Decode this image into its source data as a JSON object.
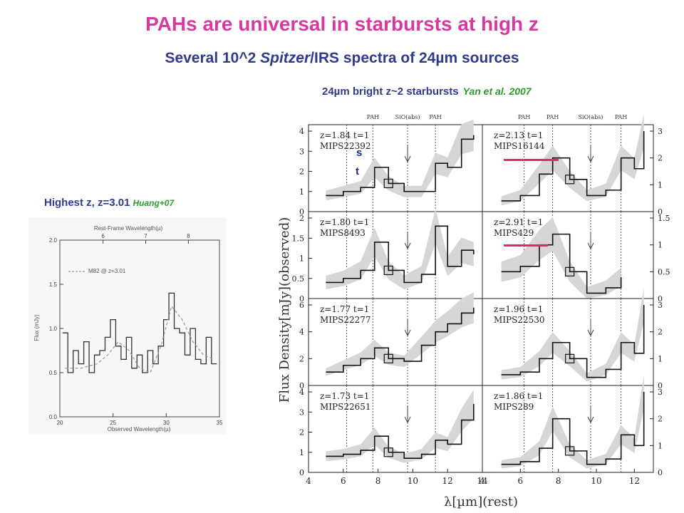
{
  "slide": {
    "title": "PAHs are universal in starbursts at high z",
    "subtitle_pre": "Several 10^2 ",
    "subtitle_italic": "Spitzer",
    "subtitle_post": "/IRS spectra of 24µm sources",
    "right_caption": "24µm bright z~2 starbursts",
    "right_ref": "Yan et al. 2007",
    "left_caption": "Highest z, z=3.01",
    "left_ref": "Huang+07"
  },
  "colors": {
    "title": "#d63aa0",
    "subtitle": "#2e3b8f",
    "ref": "#2e9b2e",
    "highlight": "#e0286e",
    "overlay_text": "#1c2a8c"
  },
  "chart_data": [
    {
      "type": "line",
      "title": "",
      "top_axis_label": "Rest-Frame Wavelength(µ)",
      "top_ticks": [
        "6",
        "7",
        "8"
      ],
      "xlabel": "Observed Wavelength(µ)",
      "ylabel": "Flux (mJy)",
      "xlim": [
        20,
        35
      ],
      "ylim": [
        0,
        2.0
      ],
      "x_ticks": [
        "20",
        "25",
        "30",
        "35"
      ],
      "y_ticks": [
        "0.0",
        "0.5",
        "1.0",
        "1.5",
        "2.0"
      ],
      "legend": "M82 @ z=3.01",
      "series": [
        {
          "name": "data",
          "x": [
            20.5,
            21,
            21.5,
            22,
            22.5,
            23,
            23.5,
            24,
            24.5,
            25,
            25.5,
            26,
            26.5,
            27,
            27.5,
            28,
            28.5,
            29,
            29.5,
            30,
            30.5,
            31,
            31.5,
            32,
            32.5,
            33,
            33.5,
            34,
            34.5
          ],
          "y": [
            0.95,
            0.5,
            0.75,
            0.6,
            0.85,
            0.5,
            0.7,
            0.75,
            0.9,
            1.1,
            0.8,
            0.65,
            0.9,
            0.55,
            0.7,
            0.5,
            0.75,
            0.6,
            0.8,
            1.1,
            1.4,
            1.0,
            0.95,
            0.7,
            1.0,
            0.65,
            0.6,
            0.9,
            0.6
          ]
        },
        {
          "name": "M82 @ z=3.01",
          "x": [
            20.5,
            22,
            23.5,
            24.5,
            25.5,
            26.5,
            27.5,
            28.5,
            29.5,
            30.5,
            31.5,
            32.5,
            33.5,
            34.5
          ],
          "y": [
            0.55,
            0.55,
            0.6,
            0.7,
            0.85,
            0.75,
            0.55,
            0.5,
            0.8,
            1.25,
            1.1,
            0.85,
            0.7,
            0.65
          ]
        }
      ]
    },
    {
      "type": "line",
      "title": "",
      "xlabel": "λ[µm](rest)",
      "ylabel": "Flux Density[mJy](observed)",
      "x_ticks_left": [
        "4",
        "6",
        "8",
        "10",
        "12",
        "14"
      ],
      "x_ticks_right": [
        "4",
        "6",
        "8",
        "10",
        "12"
      ],
      "features": [
        "PAH",
        "SiO(abs)",
        "PAH",
        "PAH",
        "PAH",
        "SiO(abs)",
        "PAH"
      ],
      "panels": [
        {
          "label": "z=1.84  t=1",
          "name": "MIPS22392",
          "y_ticks": [
            "0",
            "1",
            "2",
            "3",
            "4"
          ],
          "x": [
            5,
            6,
            7,
            7.8,
            8.6,
            9.5,
            10.5,
            11.3,
            12,
            12.8,
            13.5
          ],
          "y": [
            0.8,
            1.0,
            1.2,
            2.2,
            1.4,
            1.0,
            1.0,
            2.4,
            2.2,
            3.6,
            3.8
          ]
        },
        {
          "label": "z=2.13  t=1",
          "name": "MIPS16144",
          "y_ticks": [
            "0",
            "1",
            "2",
            "3"
          ],
          "x": [
            5,
            6,
            7,
            7.7,
            8.6,
            9.5,
            10.5,
            11.3,
            12,
            12.5
          ],
          "y": [
            0.4,
            0.6,
            1.4,
            2.0,
            1.2,
            0.6,
            0.8,
            2.0,
            1.6,
            3.0
          ]
        },
        {
          "label": "z=1.80  t=1",
          "name": "MIPS8493",
          "y_ticks": [
            "0",
            "0.5",
            "1",
            "1.5",
            "2"
          ],
          "x": [
            5,
            6,
            7,
            7.8,
            8.6,
            9.5,
            10.5,
            11.3,
            12,
            12.8,
            13.5
          ],
          "y": [
            0.4,
            0.5,
            0.7,
            1.4,
            0.7,
            0.4,
            0.6,
            1.8,
            0.8,
            1.2,
            1.1
          ]
        },
        {
          "label": "z=2.91  t=1",
          "name": "MIPS429",
          "y_ticks": [
            "0",
            "0.5",
            "1",
            "1.5"
          ],
          "x": [
            5,
            6,
            7,
            7.7,
            8.6,
            9.5,
            10.5,
            11.3
          ],
          "y": [
            0.5,
            0.6,
            1.0,
            1.2,
            0.5,
            0.1,
            0.2,
            0.4
          ]
        },
        {
          "label": "z=1.77  t=1",
          "name": "MIPS22277",
          "y_ticks": [
            "0",
            "2",
            "4",
            "6"
          ],
          "x": [
            5,
            6,
            7,
            7.8,
            8.6,
            9.5,
            10.5,
            11.3,
            12,
            12.8,
            13.5
          ],
          "y": [
            1.0,
            1.5,
            2.0,
            2.8,
            2.0,
            1.8,
            3.0,
            4.0,
            4.6,
            5.4,
            5.8
          ]
        },
        {
          "label": "z=1.96  t=1",
          "name": "MIPS22530",
          "y_ticks": [
            "0",
            "1",
            "2",
            "3"
          ],
          "x": [
            5,
            6,
            7,
            7.7,
            8.6,
            9.5,
            10.5,
            11.3,
            12,
            12.5
          ],
          "y": [
            0.4,
            0.5,
            1.0,
            1.6,
            1.0,
            0.3,
            0.6,
            1.6,
            1.2,
            3.0
          ]
        },
        {
          "label": "z=1.73  t=1",
          "name": "MIPS22651",
          "y_ticks": [
            "0",
            "1",
            "2",
            "3",
            "4"
          ],
          "x": [
            5,
            6,
            7,
            7.8,
            8.6,
            9.5,
            10.5,
            11.3,
            12,
            12.8,
            13.5
          ],
          "y": [
            0.8,
            0.9,
            1.1,
            1.8,
            1.0,
            0.7,
            0.9,
            1.6,
            1.4,
            2.6,
            3.4
          ]
        },
        {
          "label": "z=1.86  t=1",
          "name": "MIPS289",
          "y_ticks": [
            "0",
            "1",
            "2",
            "3"
          ],
          "x": [
            5,
            6,
            7,
            7.7,
            8.6,
            9.5,
            10.5,
            11.3,
            12,
            12.5
          ],
          "y": [
            0.3,
            0.4,
            0.9,
            2.0,
            0.8,
            0.3,
            0.5,
            1.4,
            1.0,
            3.0
          ]
        }
      ]
    }
  ]
}
